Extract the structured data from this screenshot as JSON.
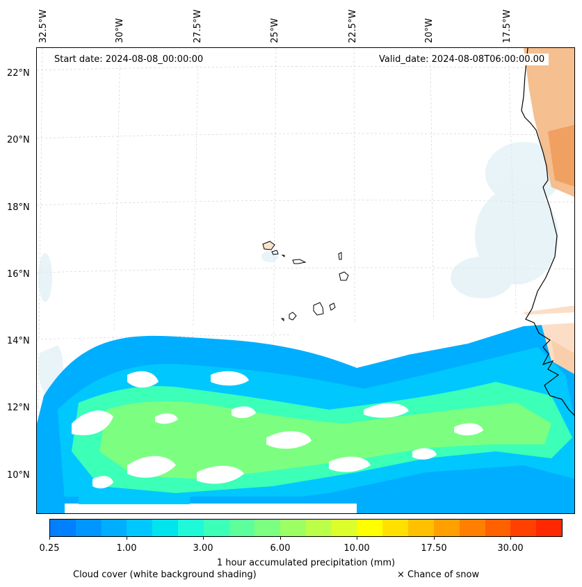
{
  "map": {
    "lon_labels": [
      "32.5°W",
      "30°W",
      "27.5°W",
      "25°W",
      "22.5°W",
      "20°W",
      "17.5°W"
    ],
    "lat_labels": [
      "22°N",
      "20°N",
      "18°N",
      "16°N",
      "14°N",
      "12°N",
      "10°N"
    ],
    "start_date": "Start date: 2024-08-08_00:00:00",
    "valid_date": "Valid_date: 2024-08-08T06:00:00.00"
  },
  "colorbar": {
    "colors": [
      "#0080ff",
      "#0096ff",
      "#00aeff",
      "#00c8ff",
      "#00e4ee",
      "#1efad8",
      "#3cffb8",
      "#5cff9c",
      "#7cff80",
      "#9cff64",
      "#bcff48",
      "#dcff2c",
      "#ffff00",
      "#ffe000",
      "#ffc000",
      "#ffa000",
      "#ff8000",
      "#ff6000",
      "#ff4000",
      "#ff2800"
    ],
    "tick_labels": [
      "0.25",
      "1.00",
      "3.00",
      "6.00",
      "10.00",
      "17.50",
      "30.00"
    ],
    "label": "1 hour accumulated precipitation (mm)"
  },
  "legend": {
    "cloud": "Cloud cover (white background shading)",
    "snow": "× Chance of snow"
  }
}
